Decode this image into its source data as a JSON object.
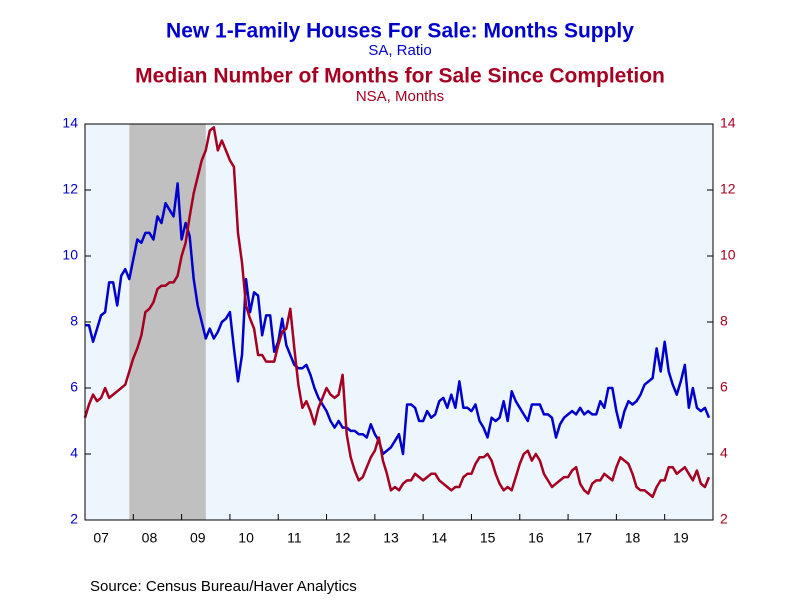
{
  "chart_data": {
    "type": "line",
    "title": "New 1-Family Houses For Sale: Months Supply",
    "subtitle": "SA, Ratio",
    "title2": "Median Number of Months for Sale Since Completion",
    "subtitle2": "NSA, Months",
    "source": "Source:  Census Bureau/Haver Analytics",
    "xlim": [
      2007,
      2020
    ],
    "xticks": [
      {
        "value": 2007,
        "label": "07"
      },
      {
        "value": 2008,
        "label": "08"
      },
      {
        "value": 2009,
        "label": "09"
      },
      {
        "value": 2010,
        "label": "10"
      },
      {
        "value": 2011,
        "label": "11"
      },
      {
        "value": 2012,
        "label": "12"
      },
      {
        "value": 2013,
        "label": "13"
      },
      {
        "value": 2014,
        "label": "14"
      },
      {
        "value": 2015,
        "label": "15"
      },
      {
        "value": 2016,
        "label": "16"
      },
      {
        "value": 2017,
        "label": "17"
      },
      {
        "value": 2018,
        "label": "18"
      },
      {
        "value": 2019,
        "label": "19"
      }
    ],
    "ylim": [
      2,
      14
    ],
    "yticks": [
      2,
      4,
      6,
      8,
      10,
      12,
      14
    ],
    "y2lim": [
      2,
      14
    ],
    "y2ticks": [
      2,
      4,
      6,
      8,
      10,
      12,
      14
    ],
    "shaded_regions": [
      [
        2007.917,
        2009.5
      ]
    ],
    "shade_color": "#c0c0c0",
    "plot_background": "#eef6fd",
    "grid": false,
    "x": [
      2007,
      2007.083,
      2007.167,
      2007.25,
      2007.333,
      2007.417,
      2007.5,
      2007.583,
      2007.667,
      2007.75,
      2007.833,
      2007.917,
      2008,
      2008.083,
      2008.167,
      2008.25,
      2008.333,
      2008.417,
      2008.5,
      2008.583,
      2008.667,
      2008.75,
      2008.833,
      2008.917,
      2009,
      2009.083,
      2009.167,
      2009.25,
      2009.333,
      2009.417,
      2009.5,
      2009.583,
      2009.667,
      2009.75,
      2009.833,
      2009.917,
      2010,
      2010.083,
      2010.167,
      2010.25,
      2010.333,
      2010.417,
      2010.5,
      2010.583,
      2010.667,
      2010.75,
      2010.833,
      2010.917,
      2011,
      2011.083,
      2011.167,
      2011.25,
      2011.333,
      2011.417,
      2011.5,
      2011.583,
      2011.667,
      2011.75,
      2011.833,
      2011.917,
      2012,
      2012.083,
      2012.167,
      2012.25,
      2012.333,
      2012.417,
      2012.5,
      2012.583,
      2012.667,
      2012.75,
      2012.833,
      2012.917,
      2013,
      2013.083,
      2013.167,
      2013.25,
      2013.333,
      2013.417,
      2013.5,
      2013.583,
      2013.667,
      2013.75,
      2013.833,
      2013.917,
      2014,
      2014.083,
      2014.167,
      2014.25,
      2014.333,
      2014.417,
      2014.5,
      2014.583,
      2014.667,
      2014.75,
      2014.833,
      2014.917,
      2015,
      2015.083,
      2015.167,
      2015.25,
      2015.333,
      2015.417,
      2015.5,
      2015.583,
      2015.667,
      2015.75,
      2015.833,
      2015.917,
      2016,
      2016.083,
      2016.167,
      2016.25,
      2016.333,
      2016.417,
      2016.5,
      2016.583,
      2016.667,
      2016.75,
      2016.833,
      2016.917,
      2017,
      2017.083,
      2017.167,
      2017.25,
      2017.333,
      2017.417,
      2017.5,
      2017.583,
      2017.667,
      2017.75,
      2017.833,
      2017.917,
      2018,
      2018.083,
      2018.167,
      2018.25,
      2018.333,
      2018.417,
      2018.5,
      2018.583,
      2018.667,
      2018.75,
      2018.833,
      2018.917,
      2019,
      2019.083,
      2019.167,
      2019.25,
      2019.333,
      2019.417,
      2019.5,
      2019.583,
      2019.667,
      2019.75,
      2019.833,
      2019.917
    ],
    "series": [
      {
        "name": "New 1-Family Houses For Sale: Months Supply",
        "color": "#0000cc",
        "axis": "y",
        "values": [
          7.9,
          7.9,
          7.4,
          7.8,
          8.2,
          8.3,
          9.2,
          9.2,
          8.5,
          9.4,
          9.6,
          9.3,
          9.9,
          10.5,
          10.4,
          10.7,
          10.7,
          10.5,
          11.2,
          11.0,
          11.6,
          11.4,
          11.2,
          12.2,
          10.5,
          11.0,
          10.6,
          9.3,
          8.5,
          8.0,
          7.5,
          7.8,
          7.5,
          7.7,
          8.0,
          8.1,
          8.3,
          7.2,
          6.2,
          7.0,
          9.3,
          8.3,
          8.9,
          8.8,
          7.6,
          8.2,
          8.2,
          7.1,
          7.4,
          8.1,
          7.3,
          7.0,
          6.7,
          6.6,
          6.6,
          6.7,
          6.4,
          6.0,
          5.7,
          5.5,
          5.3,
          5.0,
          4.8,
          5.0,
          4.8,
          4.8,
          4.7,
          4.7,
          4.6,
          4.6,
          4.5,
          4.9,
          4.6,
          4.4,
          4.0,
          4.1,
          4.2,
          4.4,
          4.6,
          4.0,
          5.5,
          5.5,
          5.4,
          5.0,
          5.0,
          5.3,
          5.1,
          5.2,
          5.6,
          5.7,
          5.4,
          5.8,
          5.4,
          6.2,
          5.4,
          5.4,
          5.3,
          5.5,
          5.0,
          4.8,
          4.5,
          5.1,
          5.0,
          5.1,
          5.6,
          5.0,
          5.9,
          5.6,
          5.4,
          5.2,
          5.0,
          5.5,
          5.5,
          5.5,
          5.2,
          5.2,
          5.1,
          4.5,
          4.9,
          5.1,
          5.2,
          5.3,
          5.2,
          5.4,
          5.2,
          5.3,
          5.2,
          5.2,
          5.6,
          5.4,
          6.0,
          6.0,
          5.3,
          4.8,
          5.3,
          5.6,
          5.5,
          5.6,
          5.8,
          6.1,
          6.2,
          6.3,
          7.2,
          6.5,
          7.4,
          6.5,
          6.1,
          5.8,
          6.2,
          6.7,
          5.4,
          6.0,
          5.4,
          5.3,
          5.4,
          5.1
        ]
      },
      {
        "name": "Median Number of Months for Sale Since Completion",
        "color": "#a50021",
        "axis": "y2",
        "values": [
          5.1,
          5.5,
          5.8,
          5.6,
          5.7,
          6.0,
          5.7,
          5.8,
          5.9,
          6.0,
          6.1,
          6.5,
          6.9,
          7.2,
          7.6,
          8.3,
          8.4,
          8.6,
          9.0,
          9.1,
          9.1,
          9.2,
          9.2,
          9.4,
          10.0,
          10.4,
          11.2,
          11.9,
          12.4,
          12.9,
          13.2,
          13.8,
          13.9,
          13.2,
          13.5,
          13.2,
          12.9,
          12.7,
          10.7,
          9.8,
          8.5,
          8.1,
          7.8,
          7.0,
          7.0,
          6.8,
          6.8,
          6.8,
          7.3,
          7.7,
          7.8,
          8.4,
          7.2,
          6.1,
          5.4,
          5.6,
          5.3,
          4.9,
          5.4,
          5.7,
          6.0,
          5.8,
          5.7,
          5.8,
          6.4,
          4.6,
          3.9,
          3.5,
          3.2,
          3.3,
          3.6,
          3.9,
          4.1,
          4.5,
          3.8,
          3.4,
          2.9,
          3.0,
          2.9,
          3.1,
          3.2,
          3.2,
          3.4,
          3.3,
          3.2,
          3.3,
          3.4,
          3.4,
          3.2,
          3.1,
          3.0,
          2.9,
          3.0,
          3.0,
          3.3,
          3.4,
          3.4,
          3.7,
          3.9,
          3.9,
          4.0,
          3.8,
          3.4,
          3.1,
          2.9,
          3.0,
          2.9,
          3.3,
          3.7,
          4.0,
          4.1,
          3.8,
          4.0,
          3.8,
          3.4,
          3.2,
          3.0,
          3.1,
          3.2,
          3.3,
          3.3,
          3.5,
          3.6,
          3.1,
          2.9,
          2.8,
          3.1,
          3.2,
          3.2,
          3.4,
          3.3,
          3.2,
          3.6,
          3.9,
          3.8,
          3.7,
          3.4,
          3.0,
          2.9,
          2.9,
          2.8,
          2.7,
          3.0,
          3.2,
          3.2,
          3.6,
          3.6,
          3.4,
          3.5,
          3.6,
          3.4,
          3.2,
          3.5,
          3.1,
          3.0,
          3.3
        ]
      }
    ]
  }
}
